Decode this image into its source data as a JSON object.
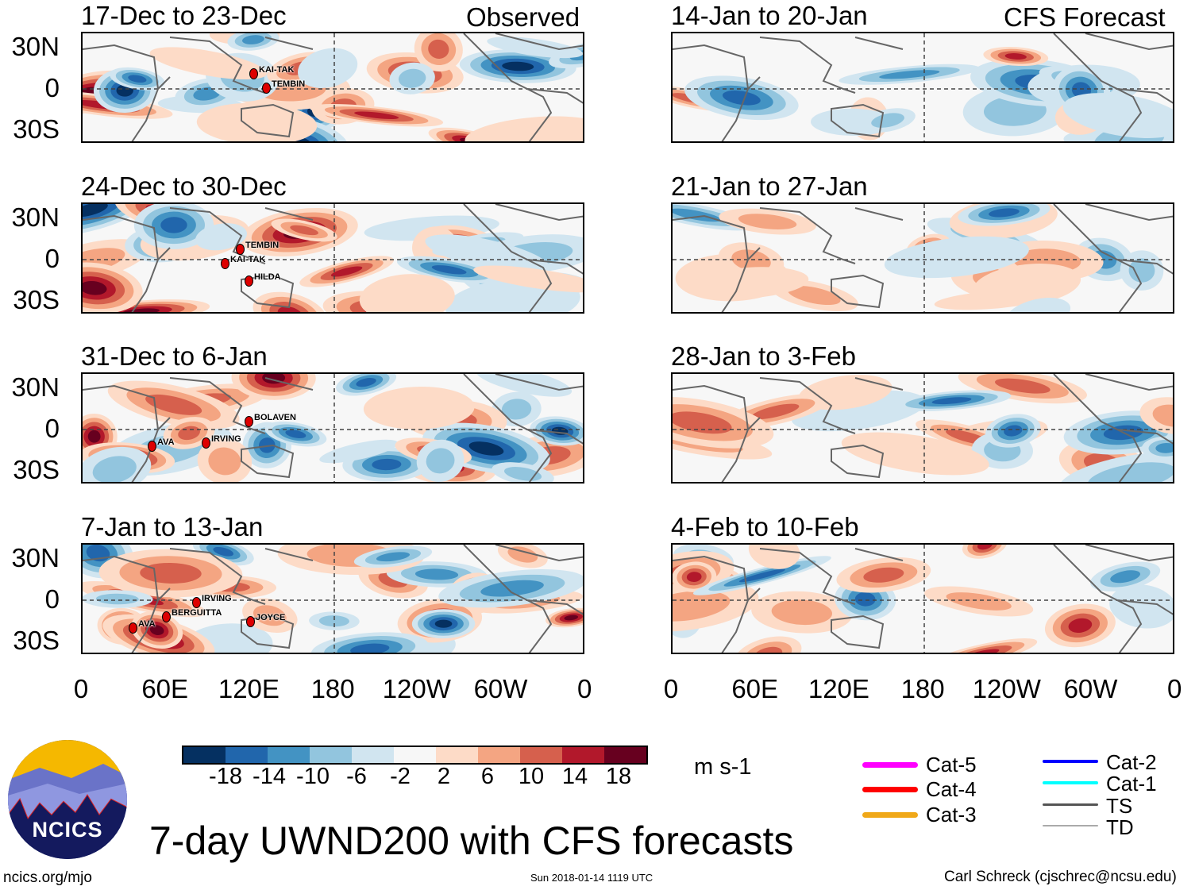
{
  "figure": {
    "title": "7-day UWND200 with CFS forecasts",
    "observed_label": "Observed",
    "forecast_label": "CFS Forecast",
    "units": "m s-1",
    "footer_left": "ncics.org/mjo",
    "footer_center": "Sun 2018-01-14 1119 UTC",
    "footer_right": "Carl Schreck (cjschrec@ncsu.edu)",
    "logo_text": "NCICS"
  },
  "chart_data": {
    "type": "heatmap",
    "variable": "200-hPa zonal wind anomaly",
    "y_ticks": [
      "30N",
      "0",
      "30S"
    ],
    "x_ticks": [
      "0",
      "60E",
      "120E",
      "180",
      "120W",
      "60W",
      "0"
    ],
    "colorbar": {
      "ticks": [
        "-18",
        "-14",
        "-10",
        "-6",
        "-2",
        "2",
        "6",
        "10",
        "14",
        "18"
      ],
      "colors": [
        "#053061",
        "#2166ac",
        "#4393c3",
        "#92c5de",
        "#d1e5f0",
        "#f7f7f7",
        "#fddbc7",
        "#f4a582",
        "#d6604d",
        "#b2182b",
        "#67001f"
      ]
    },
    "panels": [
      {
        "title": "17-Dec to 23-Dec",
        "column": "observed",
        "storms": [
          "KAI-TAK",
          "TEMBIN"
        ]
      },
      {
        "title": "24-Dec to 30-Dec",
        "column": "observed",
        "storms": [
          "TEMBIN",
          "KAI-TAK",
          "HILDA"
        ]
      },
      {
        "title": "31-Dec to 6-Jan",
        "column": "observed",
        "storms": [
          "BOLAVEN",
          "AVA",
          "IRVING"
        ]
      },
      {
        "title": "7-Jan to 13-Jan",
        "column": "observed",
        "storms": [
          "AVA",
          "BERGUITTA",
          "IRVING",
          "JOYCE"
        ]
      },
      {
        "title": "14-Jan to 20-Jan",
        "column": "forecast",
        "storms": []
      },
      {
        "title": "21-Jan to 27-Jan",
        "column": "forecast",
        "storms": []
      },
      {
        "title": "28-Jan to 3-Feb",
        "column": "forecast",
        "storms": []
      },
      {
        "title": "4-Feb to 10-Feb",
        "column": "forecast",
        "storms": []
      }
    ],
    "storm_legend": [
      {
        "label": "Cat-5",
        "color": "#ff00ff"
      },
      {
        "label": "Cat-4",
        "color": "#ff0000"
      },
      {
        "label": "Cat-3",
        "color": "#f0a818"
      },
      {
        "label": "Cat-2",
        "color": "#0000ff"
      },
      {
        "label": "Cat-1",
        "color": "#00ffff"
      },
      {
        "label": "TS",
        "color": "#555555"
      },
      {
        "label": "TD",
        "color": "#aaaaaa"
      }
    ]
  }
}
